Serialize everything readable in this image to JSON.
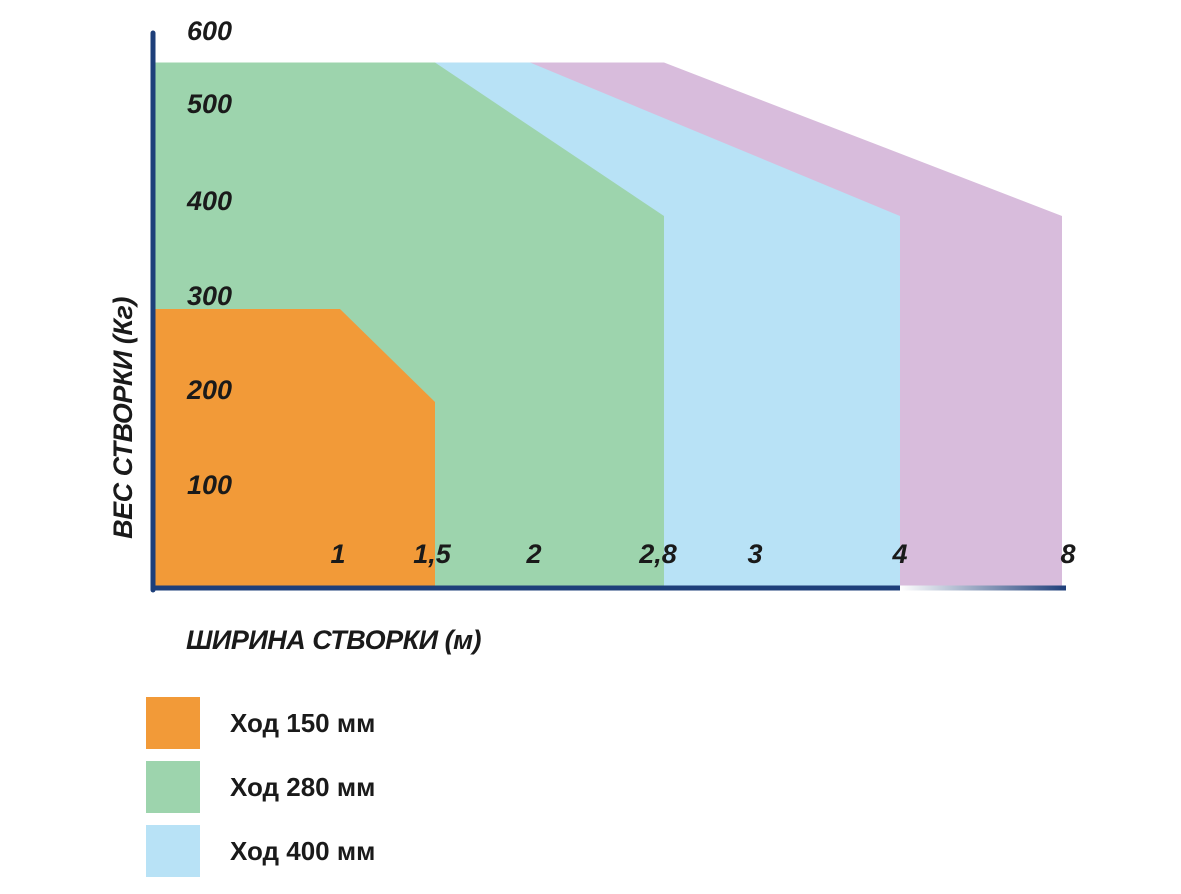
{
  "chart_data": {
    "type": "area",
    "title": "",
    "xlabel": "ШИРИНА СТВОРКИ (м)",
    "ylabel": "ВЕС СТВОРКИ (Кг)",
    "ylim": [
      0,
      600
    ],
    "y_ticks": [
      "100",
      "200",
      "300",
      "400",
      "500",
      "600"
    ],
    "x_ticks": [
      "1",
      "1,5",
      "2",
      "2,8",
      "3",
      "4",
      "8"
    ],
    "x_tick_values": [
      1,
      1.5,
      2,
      2.8,
      3,
      4,
      8
    ],
    "grid": false,
    "legend_position": "bottom-left",
    "axis_color": "#1e3f7a",
    "series": [
      {
        "name": "Ход 150 мм",
        "color": "#f29a38",
        "points": [
          [
            0,
            300
          ],
          [
            1,
            300
          ],
          [
            1.5,
            200
          ],
          [
            1.5,
            0
          ],
          [
            0,
            0
          ]
        ]
      },
      {
        "name": "Ход 280 мм",
        "color": "#9dd4ad",
        "points": [
          [
            0,
            565
          ],
          [
            1.5,
            565
          ],
          [
            2.8,
            400
          ],
          [
            2.8,
            0
          ],
          [
            0,
            0
          ]
        ]
      },
      {
        "name": "Ход 400 мм",
        "color": "#b8e2f6",
        "points": [
          [
            0,
            565
          ],
          [
            2,
            565
          ],
          [
            4,
            400
          ],
          [
            4,
            0
          ],
          [
            0,
            0
          ]
        ]
      },
      {
        "name": "",
        "color": "#d8bcdc",
        "points": [
          [
            0,
            565
          ],
          [
            2.8,
            565
          ],
          [
            8,
            400
          ],
          [
            8,
            0
          ],
          [
            0,
            0
          ]
        ]
      }
    ]
  }
}
